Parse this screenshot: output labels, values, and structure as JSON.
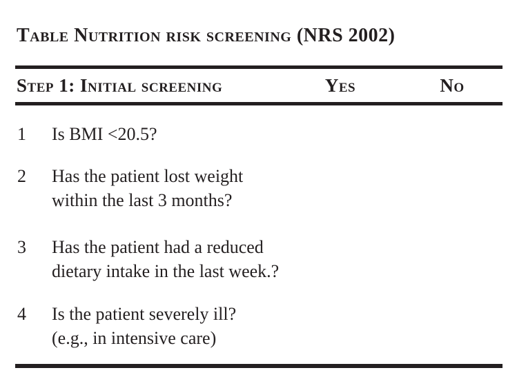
{
  "meta": {
    "ink_color": "#231f20",
    "background_color": "#ffffff"
  },
  "title": "Table Nutrition risk screening (NRS 2002)",
  "table": {
    "header": {
      "step": "Step 1: Initial screening",
      "yes": "Yes",
      "no": "No"
    },
    "rows": [
      {
        "number": "1",
        "lines": [
          "Is BMI <20.5?",
          ""
        ]
      },
      {
        "number": "2",
        "lines": [
          "Has the patient lost weight",
          "within the last 3 months?"
        ]
      },
      {
        "number": "3",
        "lines": [
          "Has the patient had a reduced",
          "dietary intake in the last week.?"
        ]
      },
      {
        "number": "4",
        "lines": [
          "Is the patient severely ill?",
          "(e.g., in intensive care)"
        ]
      }
    ]
  }
}
